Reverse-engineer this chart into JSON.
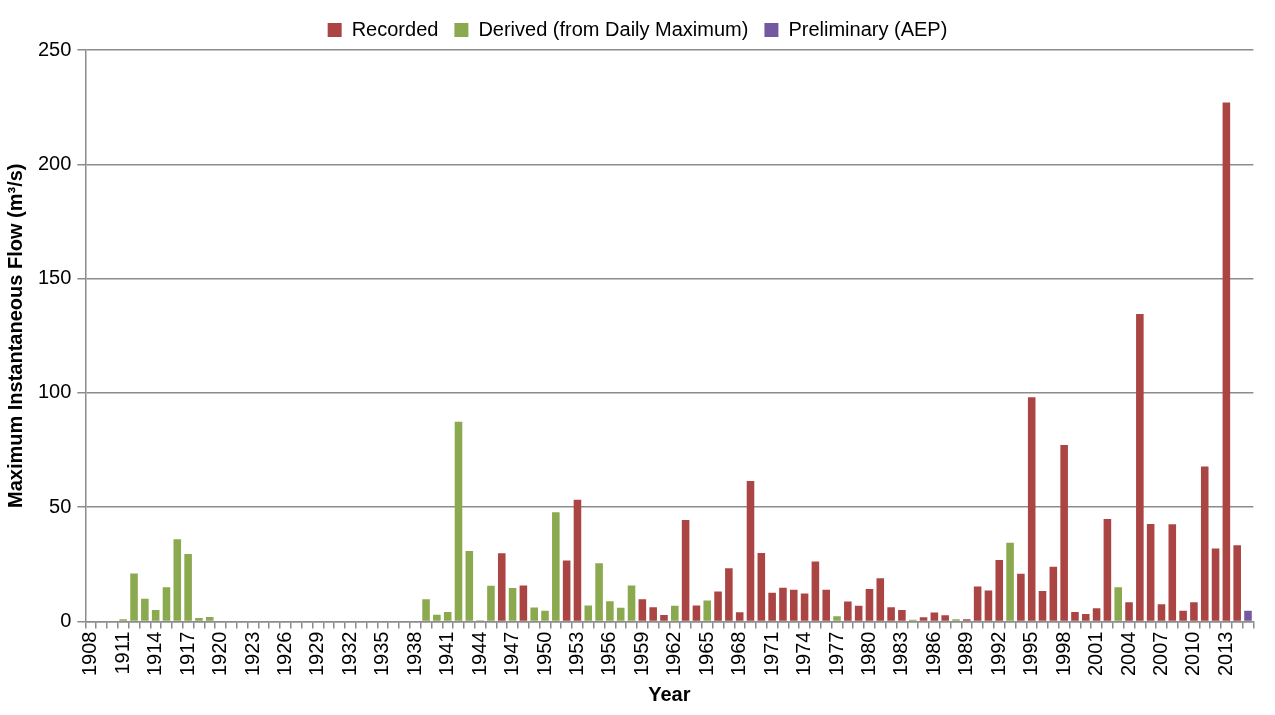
{
  "chart_data": {
    "type": "bar",
    "xlabel": "Year",
    "ylabel": "Maximum Instantaneous Flow (m³/s)",
    "categories": [
      "1908",
      null,
      null,
      "1911",
      null,
      null,
      "1914",
      null,
      null,
      "1917",
      null,
      null,
      "1920",
      null,
      null,
      "1923",
      null,
      null,
      "1926",
      null,
      null,
      "1929",
      null,
      null,
      "1932",
      null,
      null,
      "1935",
      null,
      null,
      "1938",
      null,
      null,
      "1941",
      null,
      null,
      "1944",
      null,
      null,
      "1947",
      null,
      null,
      "1950",
      null,
      null,
      "1953",
      null,
      null,
      "1956",
      null,
      null,
      "1959",
      null,
      null,
      "1962",
      null,
      null,
      "1965",
      null,
      null,
      "1968",
      null,
      null,
      "1971",
      null,
      null,
      "1974",
      null,
      null,
      "1977",
      null,
      null,
      "1980",
      null,
      null,
      "1983",
      null,
      null,
      "1986",
      null,
      null,
      "1989",
      null,
      null,
      "1992",
      null,
      null,
      "1995",
      null,
      null,
      "1998",
      null,
      null,
      "2001",
      null,
      null,
      "2004",
      null,
      null,
      "2007",
      null,
      null,
      "2010",
      null,
      null,
      "2013",
      null,
      null
    ],
    "series": [
      {
        "name": "Recorded",
        "color": "#ab4544",
        "values": [
          null,
          null,
          null,
          null,
          null,
          null,
          null,
          null,
          null,
          null,
          null,
          null,
          null,
          null,
          null,
          null,
          null,
          null,
          null,
          null,
          null,
          null,
          null,
          null,
          null,
          null,
          null,
          null,
          null,
          null,
          null,
          null,
          null,
          null,
          null,
          null,
          null,
          null,
          29.9,
          null,
          15.8,
          null,
          null,
          null,
          26.7,
          53.3,
          null,
          null,
          null,
          null,
          null,
          9.7,
          6.2,
          2.8,
          null,
          44.4,
          7,
          null,
          13.1,
          23.3,
          4,
          61.5,
          30,
          12.6,
          14.8,
          13.9,
          12.3,
          26.2,
          13.9,
          null,
          8.8,
          6.9,
          14.2,
          18.9,
          6.2,
          5,
          null,
          1.9,
          3.9,
          2.7,
          null,
          1,
          15.3,
          13.6,
          26.9,
          null,
          20.9,
          98.1,
          13.4,
          23.9,
          77.2,
          4.2,
          3.3,
          5.8,
          44.8,
          null,
          8.4,
          134.5,
          42.7,
          7.5,
          42.5,
          4.7,
          8.4,
          67.8,
          31.9,
          227,
          33.4,
          null
        ]
      },
      {
        "name": "Derived (from Daily Maximum)",
        "color": "#8ba94f",
        "values": [
          null,
          null,
          null,
          1,
          21,
          10,
          5,
          15,
          36,
          29.5,
          1.5,
          2,
          null,
          null,
          null,
          null,
          null,
          null,
          null,
          null,
          null,
          null,
          null,
          null,
          null,
          null,
          null,
          null,
          null,
          null,
          null,
          9.7,
          3,
          4.2,
          87.4,
          30.8,
          0.5,
          15.6,
          null,
          14.7,
          null,
          6.1,
          4.7,
          47.8,
          null,
          null,
          7,
          25.5,
          8.9,
          6,
          15.8,
          null,
          null,
          null,
          6.9,
          null,
          null,
          9.2,
          null,
          null,
          null,
          null,
          null,
          null,
          null,
          null,
          null,
          null,
          null,
          2.3,
          null,
          null,
          null,
          null,
          null,
          null,
          0.8,
          null,
          null,
          null,
          1,
          null,
          null,
          null,
          null,
          34.4,
          null,
          null,
          null,
          null,
          null,
          null,
          null,
          null,
          null,
          15,
          null,
          null,
          null,
          null,
          null,
          null,
          null,
          null,
          null,
          null,
          null,
          null
        ]
      },
      {
        "name": "Preliminary (AEP)",
        "color": "#7459a0",
        "values": [
          null,
          null,
          null,
          null,
          null,
          null,
          null,
          null,
          null,
          null,
          null,
          null,
          null,
          null,
          null,
          null,
          null,
          null,
          null,
          null,
          null,
          null,
          null,
          null,
          null,
          null,
          null,
          null,
          null,
          null,
          null,
          null,
          null,
          null,
          null,
          null,
          null,
          null,
          null,
          null,
          null,
          null,
          null,
          null,
          null,
          null,
          null,
          null,
          null,
          null,
          null,
          null,
          null,
          null,
          null,
          null,
          null,
          null,
          null,
          null,
          null,
          null,
          null,
          null,
          null,
          null,
          null,
          null,
          null,
          null,
          null,
          null,
          null,
          null,
          null,
          null,
          null,
          null,
          null,
          null,
          null,
          null,
          null,
          null,
          null,
          null,
          null,
          null,
          null,
          null,
          null,
          null,
          null,
          null,
          null,
          null,
          null,
          null,
          null,
          null,
          null,
          null,
          null,
          null,
          null,
          null,
          null,
          4.7
        ]
      }
    ],
    "ylim": [
      0,
      250
    ],
    "yticks": [
      0,
      50,
      100,
      150,
      200,
      250
    ],
    "grid": "y",
    "legend": "top"
  }
}
